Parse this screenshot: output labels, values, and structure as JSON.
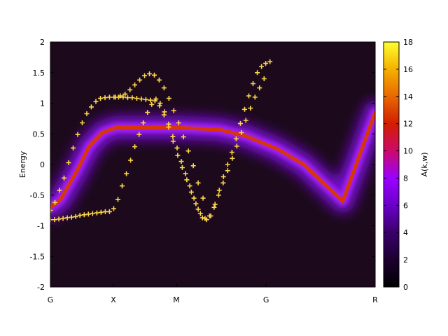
{
  "chart_data": {
    "type": "heatmap",
    "title": "",
    "xlabel": "",
    "ylabel": "Energy",
    "xticks": [
      "G",
      "X",
      "M",
      "G",
      "R"
    ],
    "ylim": [
      -2,
      2
    ],
    "yticks": [
      -2,
      -1.5,
      -1,
      -0.5,
      0,
      0.5,
      1,
      1.5,
      2
    ],
    "colorbar": {
      "label": "A(k,w)",
      "range": [
        0,
        18
      ],
      "ticks": [
        0,
        2,
        4,
        6,
        8,
        10,
        12,
        14,
        16,
        18
      ],
      "colors": [
        "#000000",
        "#1c0030",
        "#3a006a",
        "#6a00c8",
        "#9a00ff",
        "#cc0a6a",
        "#d21e00",
        "#e86800",
        "#f5b000",
        "#ffff2e"
      ]
    },
    "intensity_ridges": [
      {
        "name": "",
        "k": [
          0,
          0.03,
          0.08,
          0.12,
          0.16,
          0.2,
          0.3,
          0.4,
          0.52,
          0.6,
          0.7,
          0.78,
          0.85,
          0.9,
          1.0
        ],
        "E": [
          -0.7,
          -0.58,
          -0.12,
          0.3,
          0.52,
          0.6,
          0.6,
          0.6,
          0.57,
          0.47,
          0.25,
          0.0,
          -0.35,
          -0.6,
          0.85
        ]
      }
    ],
    "series": [
      {
        "name": "",
        "color": "#ffd84a",
        "points": [
          [
            0.0,
            -0.9
          ],
          [
            0.013,
            -0.9
          ],
          [
            0.026,
            -0.89
          ],
          [
            0.039,
            -0.88
          ],
          [
            0.052,
            -0.87
          ],
          [
            0.065,
            -0.86
          ],
          [
            0.078,
            -0.85
          ],
          [
            0.091,
            -0.83
          ],
          [
            0.104,
            -0.82
          ],
          [
            0.117,
            -0.81
          ],
          [
            0.13,
            -0.8
          ],
          [
            0.143,
            -0.79
          ],
          [
            0.156,
            -0.78
          ],
          [
            0.169,
            -0.77
          ],
          [
            0.182,
            -0.77
          ],
          [
            0.195,
            -0.72
          ],
          [
            0.208,
            -0.57
          ],
          [
            0.221,
            -0.35
          ],
          [
            0.234,
            -0.15
          ],
          [
            0.247,
            0.07
          ],
          [
            0.26,
            0.29
          ],
          [
            0.273,
            0.49
          ],
          [
            0.286,
            0.68
          ],
          [
            0.299,
            0.85
          ],
          [
            0.312,
            0.98
          ],
          [
            0.325,
            1.07
          ],
          [
            0.338,
            1.0
          ],
          [
            0.351,
            0.86
          ],
          [
            0.364,
            0.66
          ],
          [
            0.377,
            0.46
          ],
          [
            0.39,
            0.27
          ],
          [
            0.403,
            0.05
          ],
          [
            0.416,
            -0.15
          ],
          [
            0.429,
            -0.35
          ],
          [
            0.442,
            -0.55
          ],
          [
            0.455,
            -0.73
          ],
          [
            0.468,
            -0.87
          ],
          [
            0.481,
            -0.9
          ],
          [
            0.494,
            -0.84
          ],
          [
            0.507,
            -0.65
          ],
          [
            0.52,
            -0.42
          ],
          [
            0.533,
            -0.2
          ],
          [
            0.546,
            0.0
          ],
          [
            0.559,
            0.2
          ],
          [
            0.572,
            0.42
          ],
          [
            0.585,
            0.67
          ],
          [
            0.598,
            0.9
          ],
          [
            0.611,
            1.12
          ],
          [
            0.624,
            1.32
          ],
          [
            0.637,
            1.5
          ],
          [
            0.65,
            1.6
          ],
          [
            0.663,
            1.65
          ],
          [
            0.676,
            1.68
          ]
        ]
      },
      {
        "name": "",
        "color": "#ffd84a",
        "points": [
          [
            0.0,
            -0.75
          ],
          [
            0.014,
            -0.62
          ],
          [
            0.028,
            -0.42
          ],
          [
            0.042,
            -0.22
          ],
          [
            0.056,
            0.03
          ],
          [
            0.07,
            0.27
          ],
          [
            0.084,
            0.49
          ],
          [
            0.098,
            0.68
          ],
          [
            0.112,
            0.83
          ],
          [
            0.126,
            0.94
          ],
          [
            0.14,
            1.03
          ],
          [
            0.154,
            1.08
          ],
          [
            0.168,
            1.09
          ],
          [
            0.182,
            1.1
          ],
          [
            0.196,
            1.1
          ],
          [
            0.21,
            1.1
          ],
          [
            0.224,
            1.1
          ],
          [
            0.238,
            1.09
          ],
          [
            0.252,
            1.09
          ],
          [
            0.266,
            1.08
          ],
          [
            0.28,
            1.07
          ],
          [
            0.294,
            1.06
          ],
          [
            0.308,
            1.05
          ],
          [
            0.322,
            1.04
          ],
          [
            0.336,
            0.96
          ],
          [
            0.35,
            0.81
          ],
          [
            0.364,
            0.61
          ],
          [
            0.378,
            0.38
          ],
          [
            0.392,
            0.15
          ],
          [
            0.406,
            -0.05
          ],
          [
            0.42,
            -0.25
          ],
          [
            0.434,
            -0.45
          ],
          [
            0.448,
            -0.64
          ],
          [
            0.462,
            -0.8
          ],
          [
            0.476,
            -0.88
          ],
          [
            0.49,
            -0.84
          ],
          [
            0.504,
            -0.7
          ],
          [
            0.518,
            -0.5
          ],
          [
            0.532,
            -0.3
          ],
          [
            0.546,
            -0.1
          ],
          [
            0.56,
            0.1
          ],
          [
            0.574,
            0.3
          ],
          [
            0.588,
            0.52
          ],
          [
            0.602,
            0.72
          ],
          [
            0.616,
            0.92
          ],
          [
            0.63,
            1.1
          ],
          [
            0.644,
            1.25
          ],
          [
            0.658,
            1.4
          ]
        ]
      },
      {
        "name": "",
        "color": "#ffd84a",
        "points": [
          [
            0.2,
            1.1
          ],
          [
            0.215,
            1.12
          ],
          [
            0.23,
            1.15
          ],
          [
            0.245,
            1.22
          ],
          [
            0.26,
            1.3
          ],
          [
            0.275,
            1.38
          ],
          [
            0.29,
            1.45
          ],
          [
            0.305,
            1.48
          ],
          [
            0.32,
            1.46
          ],
          [
            0.335,
            1.38
          ],
          [
            0.35,
            1.25
          ],
          [
            0.365,
            1.08
          ],
          [
            0.38,
            0.88
          ],
          [
            0.395,
            0.68
          ],
          [
            0.41,
            0.45
          ],
          [
            0.425,
            0.22
          ],
          [
            0.44,
            -0.02
          ],
          [
            0.455,
            -0.3
          ],
          [
            0.47,
            -0.55
          ]
        ]
      }
    ]
  }
}
